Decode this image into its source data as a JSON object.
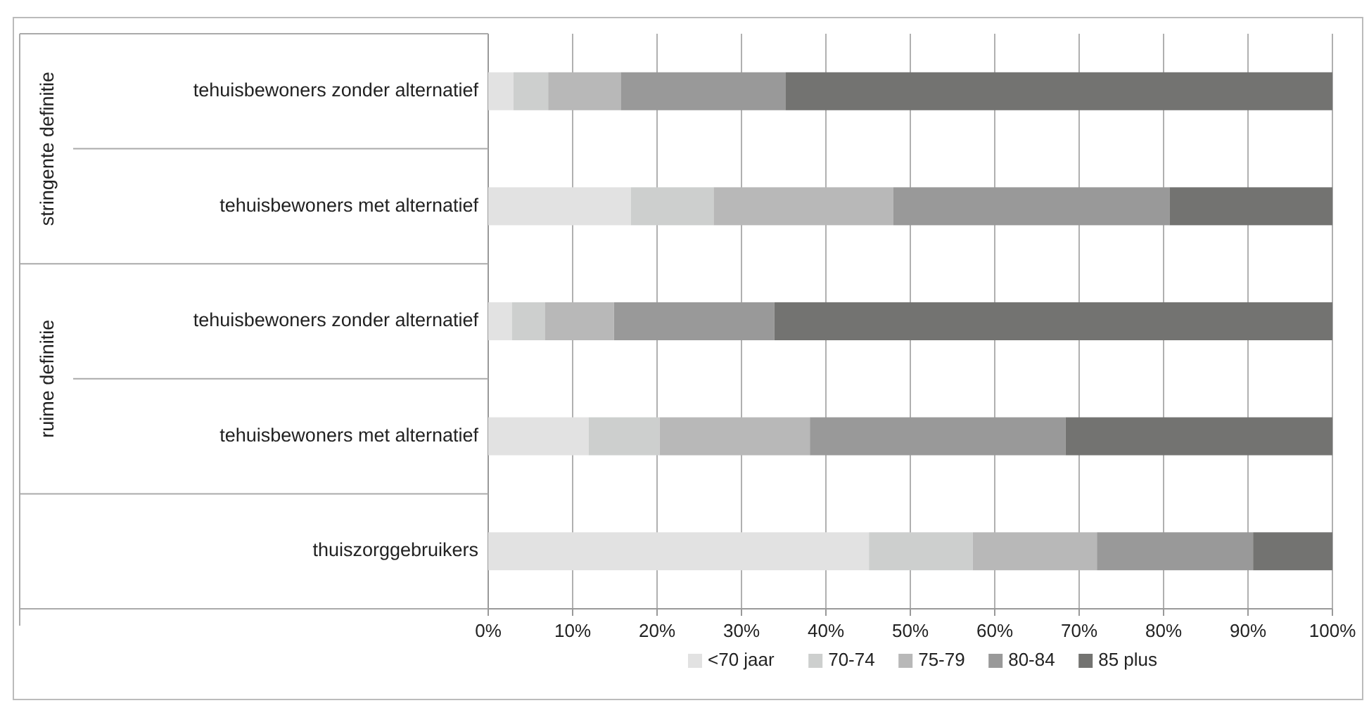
{
  "chart_data": {
    "type": "bar",
    "orientation": "horizontal",
    "stacked": true,
    "categories": [
      "tehuisbewoners zonder alternatief",
      "tehuisbewoners met alternatief",
      "tehuisbewoners zonder alternatief",
      "tehuisbewoners met alternatief",
      "thuiszorggebruikers"
    ],
    "series": [
      {
        "name": "<70 jaar",
        "color": "#e2e2e2",
        "values": [
          3.0,
          16.9,
          2.8,
          11.9,
          45.1
        ]
      },
      {
        "name": "70-74",
        "color": "#cdcfce",
        "values": [
          4.1,
          9.8,
          3.9,
          8.4,
          12.3
        ]
      },
      {
        "name": "75-79",
        "color": "#b8b8b8",
        "values": [
          8.6,
          21.3,
          8.2,
          17.8,
          14.7
        ]
      },
      {
        "name": "80-84",
        "color": "#999999",
        "values": [
          19.5,
          32.7,
          19.0,
          30.3,
          18.5
        ]
      },
      {
        "name": "85 plus",
        "color": "#737371",
        "values": [
          64.8,
          19.3,
          66.1,
          31.6,
          9.4
        ]
      }
    ],
    "xlim": [
      0,
      100
    ],
    "xticks": [
      {
        "value": 0,
        "label": "0%"
      },
      {
        "value": 10,
        "label": "10%"
      },
      {
        "value": 20,
        "label": "20%"
      },
      {
        "value": 30,
        "label": "30%"
      },
      {
        "value": 40,
        "label": "40%"
      },
      {
        "value": 50,
        "label": "50%"
      },
      {
        "value": 60,
        "label": "60%"
      },
      {
        "value": 70,
        "label": "70%"
      },
      {
        "value": 80,
        "label": "80%"
      },
      {
        "value": 90,
        "label": "90%"
      },
      {
        "value": 100,
        "label": "100%"
      }
    ],
    "grid": "x",
    "legend": "bottom",
    "annotations": [
      "stringente definitie",
      "ruime definitie"
    ]
  }
}
